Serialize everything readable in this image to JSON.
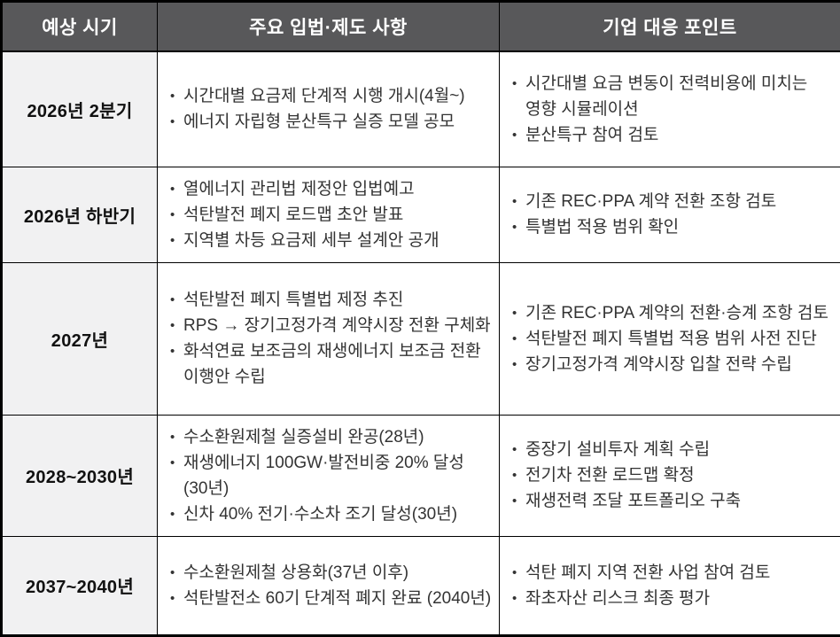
{
  "colors": {
    "header_bg": "#58585A",
    "header_text": "#FFFFFF",
    "period_column_bg": "#F1F1F2",
    "border": "#000000",
    "body_text": "#333333"
  },
  "table": {
    "headers": [
      "예상 시기",
      "주요 입법·제도 사항",
      "기업 대응 포인트"
    ],
    "rows": [
      {
        "period": "2026년 2분기",
        "legislation": [
          "시간대별 요금제 단계적 시행 개시(4월~)",
          "에너지 자립형 분산특구 실증 모델 공모"
        ],
        "response": [
          "시간대별 요금 변동이 전력비용에 미치는 영향 시뮬레이션",
          "분산특구 참여 검토"
        ]
      },
      {
        "period": "2026년 하반기",
        "legislation": [
          "열에너지 관리법 제정안 입법예고",
          "석탄발전 폐지 로드맵 초안 발표",
          "지역별 차등 요금제 세부 설계안 공개"
        ],
        "response": [
          "기존 REC·PPA 계약 전환 조항 검토",
          "특별법 적용 범위 확인"
        ]
      },
      {
        "period": "2027년",
        "legislation": [
          "석탄발전 폐지 특별법 제정 추진",
          "RPS → 장기고정가격 계약시장 전환 구체화",
          "화석연료 보조금의 재생에너지 보조금 전환 이행안 수립"
        ],
        "response": [
          "기존 REC·PPA 계약의 전환·승계 조항 검토",
          "석탄발전 폐지 특별법 적용 범위 사전 진단",
          "장기고정가격 계약시장 입찰 전략 수립"
        ]
      },
      {
        "period": "2028~2030년",
        "legislation": [
          "수소환원제철 실증설비 완공(28년)",
          "재생에너지 100GW·발전비중 20% 달성(30년)",
          "신차 40% 전기·수소차 조기 달성(30년)"
        ],
        "response": [
          "중장기 설비투자 계획 수립",
          "전기차 전환 로드맵 확정",
          "재생전력 조달 포트폴리오 구축"
        ]
      },
      {
        "period": "2037~2040년",
        "legislation": [
          "수소환원제철 상용화(37년 이후)",
          "석탄발전소 60기 단계적 폐지 완료 (2040년)"
        ],
        "response": [
          "석탄 폐지 지역 전환 사업 참여 검토",
          "좌초자산 리스크 최종 평가"
        ]
      }
    ]
  }
}
